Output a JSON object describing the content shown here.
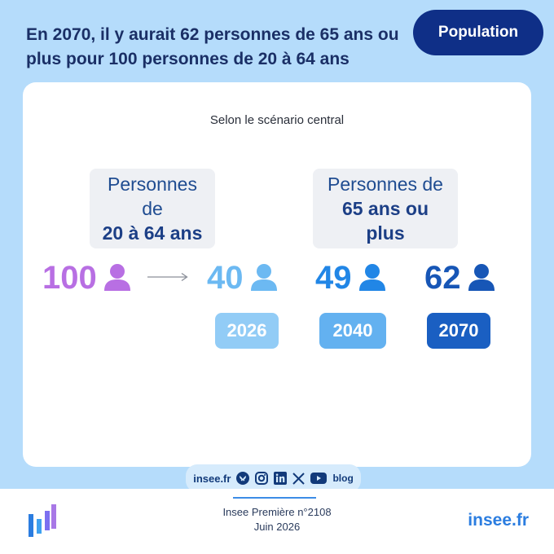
{
  "header": {
    "title": "En 2070, il y aurait 62 personnes de 65 ans ou plus pour 100 personnes de 20 à 64 ans",
    "tag": "Population"
  },
  "card": {
    "subtitle": "Selon le scénario central",
    "group_working": {
      "line1": "Personnes de",
      "line2": "20 à 64 ans"
    },
    "group_elderly": {
      "line1": "Personnes de",
      "line2": "65 ans ou plus"
    },
    "base_value": "100",
    "values": [
      {
        "year": "2026",
        "value": "40",
        "color": "#6cb9f2"
      },
      {
        "year": "2040",
        "value": "49",
        "color": "#2186e6"
      },
      {
        "year": "2070",
        "value": "62",
        "color": "#1756b6"
      }
    ],
    "base_color": "#b86fe3",
    "icon": "person-icon"
  },
  "social": {
    "site": "insee.fr",
    "icons": [
      "bluesky-icon",
      "instagram-icon",
      "linkedin-icon",
      "x-icon",
      "youtube-icon",
      "blog-icon"
    ],
    "blog_label": "blog"
  },
  "footer": {
    "publication": "Insee Première n°2108",
    "date": "Juin 2026",
    "brand": "insee.fr"
  }
}
